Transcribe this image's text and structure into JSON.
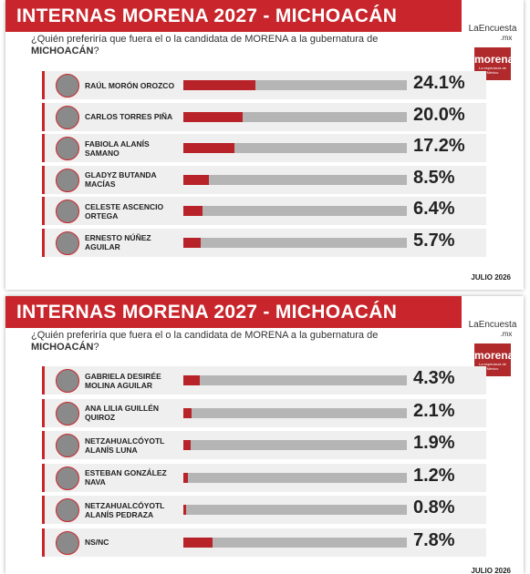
{
  "chart_data": [
    {
      "type": "bar",
      "orientation": "horizontal",
      "title": "INTERNAS MORENA 2027 - MICHOACÁN",
      "subtitle": "¿Quién preferiría que fuera el o la candidata de MORENA a la gubernatura de",
      "subtitle_emphasis": "MICHOACÁN",
      "subtitle_end": "?",
      "brand": "LaEncuesta",
      "brand_suffix": ".mx",
      "party": "morena",
      "party_tagline": "La esperanza de México",
      "categories": [
        "RAÚL MORÓN OROZCO",
        "CARLOS TORRES PIÑA",
        "FABIOLA ALANÍS SAMANO",
        "GLADYZ BUTANDA MACÍAS",
        "CELESTE ASCENCIO ORTEGA",
        "ERNESTO NÚÑEZ AGUILAR"
      ],
      "values": [
        24.1,
        20.0,
        17.2,
        8.5,
        6.4,
        5.7
      ],
      "value_labels": [
        "24.1%",
        "20.0%",
        "17.2%",
        "8.5%",
        "6.4%",
        "5.7%"
      ],
      "xlim": [
        0,
        75
      ],
      "color": "#b8232a",
      "track_color": "#b5b5b5",
      "date": "JULIO 2026"
    },
    {
      "type": "bar",
      "orientation": "horizontal",
      "title": "INTERNAS MORENA 2027 - MICHOACÁN",
      "subtitle": "¿Quién preferiría que fuera el o la candidata de MORENA a la gubernatura de",
      "subtitle_emphasis": "MICHOACÁN",
      "subtitle_end": "?",
      "brand": "LaEncuesta",
      "brand_suffix": ".mx",
      "party": "morena",
      "party_tagline": "La esperanza de México",
      "categories": [
        "GABRIELA DESIRÉE MOLINA AGUILAR",
        "ANA LILIA GUILLÉN QUIROZ",
        "NETZAHUALCÓYOTL ALANÍS LUNA",
        "ESTEBAN GONZÁLEZ NAVA",
        "NETZAHUALCÓYOTL ALANÍS PEDRAZA",
        "NS/NC"
      ],
      "values": [
        4.3,
        2.1,
        1.9,
        1.2,
        0.8,
        7.8
      ],
      "value_labels": [
        "4.3%",
        "2.1%",
        "1.9%",
        "1.2%",
        "0.8%",
        "7.8%"
      ],
      "xlim": [
        0,
        60
      ],
      "color": "#b8232a",
      "track_color": "#b5b5b5",
      "date": "JULIO 2026"
    }
  ]
}
